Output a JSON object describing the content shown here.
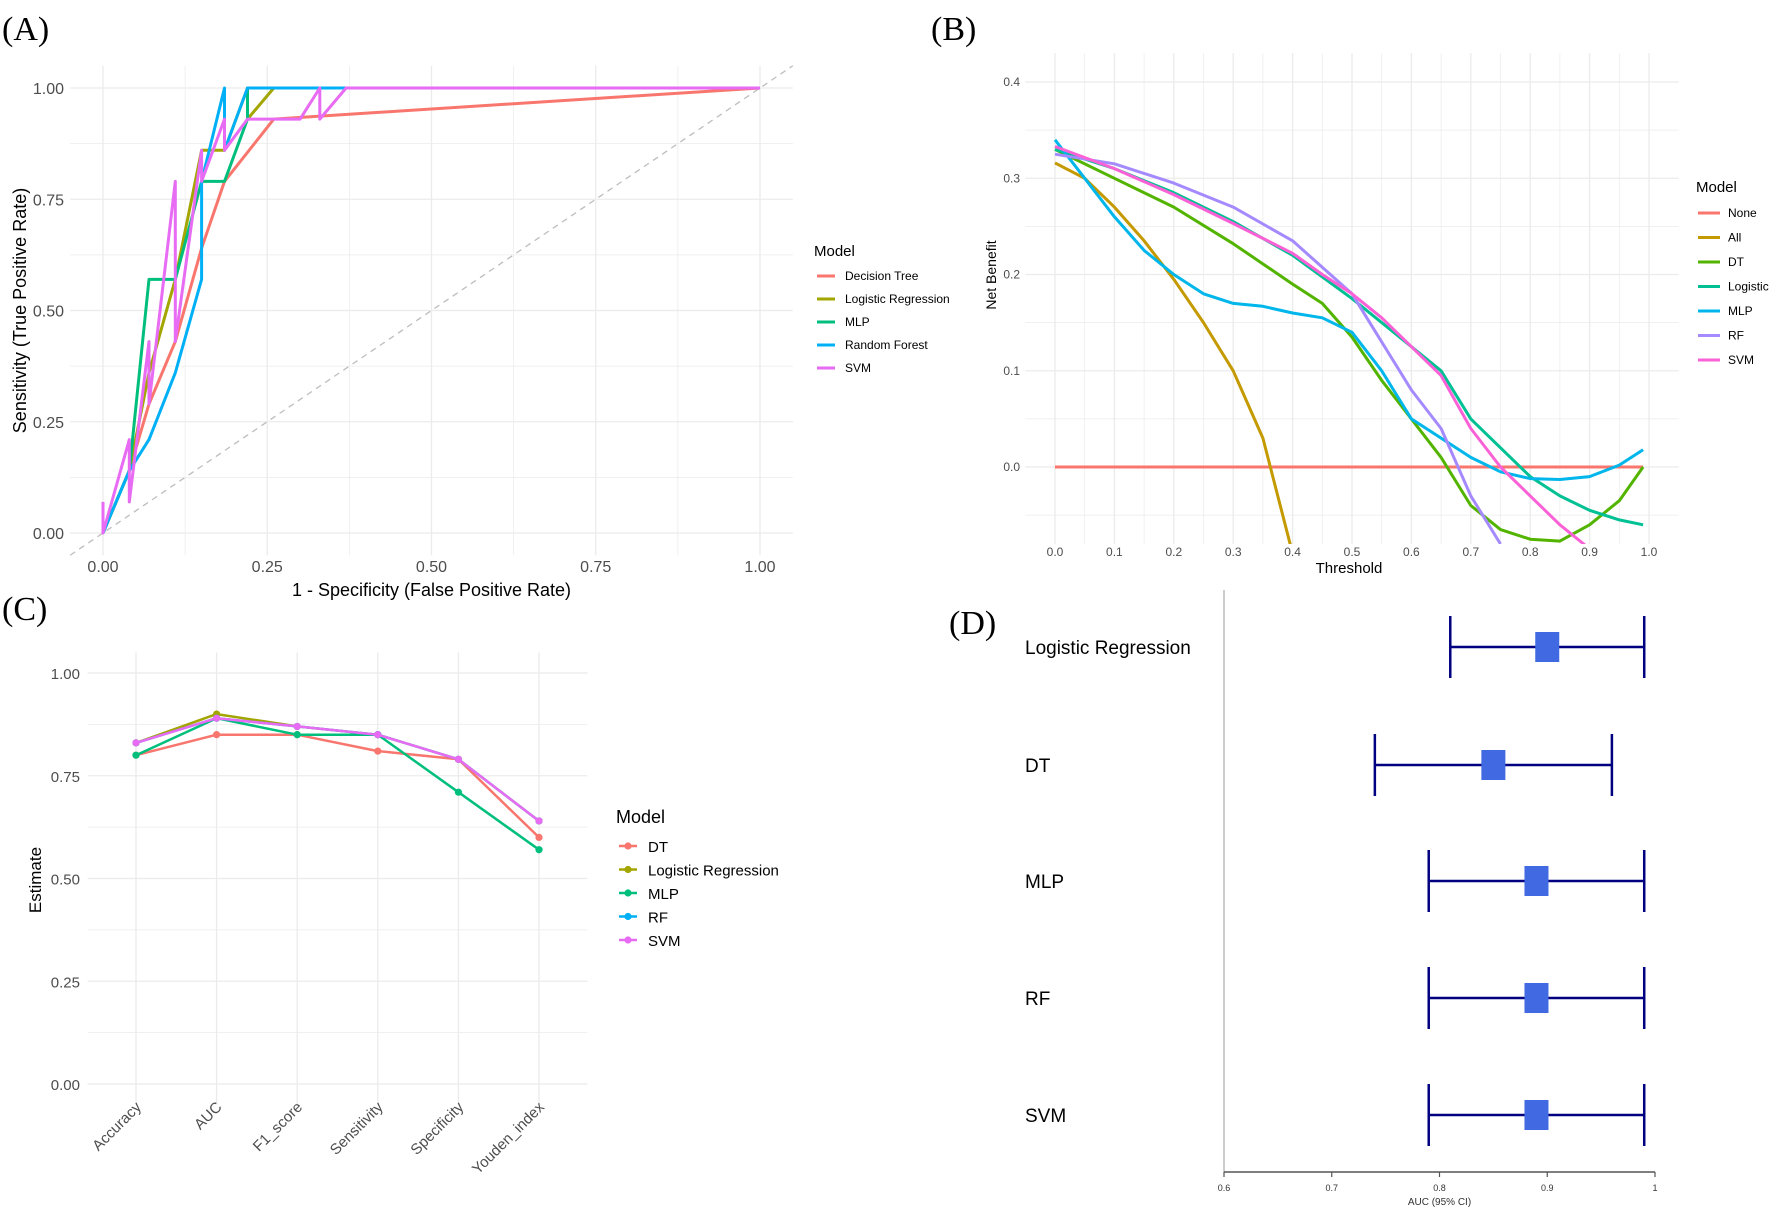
{
  "chart_data": [
    {
      "panel": "(A)",
      "type": "line",
      "xlabel": "1 - Specificity (False Positive Rate)",
      "ylabel": "Sensitivity (True Positive Rate)",
      "xlim": [
        0,
        1
      ],
      "ylim": [
        0,
        1
      ],
      "xticks": [
        "0.00",
        "0.25",
        "0.50",
        "0.75",
        "1.00"
      ],
      "yticks": [
        "0.00",
        "0.25",
        "0.50",
        "0.75",
        "1.00"
      ],
      "grid": true,
      "legend_title": "Model",
      "legend_position": "right",
      "series": [
        {
          "name": "Decision Tree",
          "color": "#F8766D",
          "points": [
            [
              0,
              0
            ],
            [
              0.04,
              0.14
            ],
            [
              0.07,
              0.29
            ],
            [
              0.11,
              0.43
            ],
            [
              0.15,
              0.64
            ],
            [
              0.185,
              0.79
            ],
            [
              0.26,
              0.93
            ],
            [
              1,
              1
            ]
          ]
        },
        {
          "name": "Logistic Regression",
          "color": "#A3A500",
          "points": [
            [
              0,
              0
            ],
            [
              0.04,
              0.14
            ],
            [
              0.07,
              0.36
            ],
            [
              0.11,
              0.57
            ],
            [
              0.15,
              0.86
            ],
            [
              0.185,
              0.86
            ],
            [
              0.22,
              1.0
            ],
            [
              0.22,
              0.93
            ],
            [
              0.26,
              1.0
            ],
            [
              1,
              1
            ]
          ]
        },
        {
          "name": "MLP",
          "color": "#00BF7D",
          "points": [
            [
              0,
              0
            ],
            [
              0.04,
              0.14
            ],
            [
              0.07,
              0.57
            ],
            [
              0.11,
              0.57
            ],
            [
              0.15,
              0.79
            ],
            [
              0.185,
              0.79
            ],
            [
              0.22,
              0.93
            ],
            [
              0.22,
              1.0
            ],
            [
              1,
              1
            ]
          ]
        },
        {
          "name": "Random Forest",
          "color": "#00B0F6",
          "points": [
            [
              0,
              0
            ],
            [
              0.04,
              0.14
            ],
            [
              0.07,
              0.21
            ],
            [
              0.11,
              0.36
            ],
            [
              0.15,
              0.57
            ],
            [
              0.15,
              0.79
            ],
            [
              0.185,
              1.0
            ],
            [
              0.185,
              0.86
            ],
            [
              0.22,
              1.0
            ],
            [
              1,
              1
            ]
          ]
        },
        {
          "name": "SVM",
          "color": "#E76BF3",
          "points": [
            [
              0,
              0.07
            ],
            [
              0,
              0
            ],
            [
              0.04,
              0.21
            ],
            [
              0.04,
              0.07
            ],
            [
              0.07,
              0.43
            ],
            [
              0.07,
              0.29
            ],
            [
              0.11,
              0.79
            ],
            [
              0.11,
              0.43
            ],
            [
              0.15,
              0.86
            ],
            [
              0.15,
              0.79
            ],
            [
              0.185,
              0.93
            ],
            [
              0.185,
              0.86
            ],
            [
              0.22,
              0.93
            ],
            [
              0.3,
              0.93
            ],
            [
              0.33,
              1.0
            ],
            [
              0.33,
              0.93
            ],
            [
              0.37,
              1.0
            ],
            [
              1,
              1
            ]
          ]
        }
      ],
      "reference_line": "diagonal"
    },
    {
      "panel": "(B)",
      "type": "line",
      "xlabel": "Threshold",
      "ylabel": "Net Benefit",
      "xlim": [
        0,
        1
      ],
      "ylim": [
        -0.08,
        0.43
      ],
      "xticks": [
        "0.0",
        "0.1",
        "0.2",
        "0.3",
        "0.4",
        "0.5",
        "0.6",
        "0.7",
        "0.8",
        "0.9",
        "1.0"
      ],
      "yticks": [
        "0.0",
        "0.1",
        "0.2",
        "0.3",
        "0.4"
      ],
      "grid": true,
      "legend_title": "Model",
      "legend_position": "right",
      "series": [
        {
          "name": "None",
          "color": "#F8766D",
          "points": [
            [
              0,
              0
            ],
            [
              0.99,
              0
            ]
          ]
        },
        {
          "name": "All",
          "color": "#C49A00",
          "points": [
            [
              0,
              0.316
            ],
            [
              0.05,
              0.3
            ],
            [
              0.1,
              0.27
            ],
            [
              0.15,
              0.235
            ],
            [
              0.2,
              0.195
            ],
            [
              0.25,
              0.15
            ],
            [
              0.3,
              0.1
            ],
            [
              0.35,
              0.03
            ],
            [
              0.4,
              -0.09
            ]
          ]
        },
        {
          "name": "DT",
          "color": "#53B400",
          "points": [
            [
              0,
              0.33
            ],
            [
              0.1,
              0.3
            ],
            [
              0.2,
              0.27
            ],
            [
              0.3,
              0.232
            ],
            [
              0.4,
              0.19
            ],
            [
              0.45,
              0.17
            ],
            [
              0.5,
              0.135
            ],
            [
              0.55,
              0.09
            ],
            [
              0.6,
              0.05
            ],
            [
              0.65,
              0.01
            ],
            [
              0.7,
              -0.04
            ],
            [
              0.75,
              -0.065
            ],
            [
              0.8,
              -0.075
            ],
            [
              0.85,
              -0.077
            ],
            [
              0.9,
              -0.06
            ],
            [
              0.95,
              -0.035
            ],
            [
              0.99,
              0
            ]
          ]
        },
        {
          "name": "Logistic",
          "color": "#00C094",
          "points": [
            [
              0,
              0.33
            ],
            [
              0.1,
              0.31
            ],
            [
              0.2,
              0.285
            ],
            [
              0.3,
              0.255
            ],
            [
              0.4,
              0.22
            ],
            [
              0.5,
              0.175
            ],
            [
              0.6,
              0.125
            ],
            [
              0.65,
              0.1
            ],
            [
              0.7,
              0.05
            ],
            [
              0.75,
              0.02
            ],
            [
              0.8,
              -0.01
            ],
            [
              0.85,
              -0.03
            ],
            [
              0.9,
              -0.045
            ],
            [
              0.95,
              -0.055
            ],
            [
              0.99,
              -0.06
            ]
          ]
        },
        {
          "name": "MLP",
          "color": "#00B6EB",
          "points": [
            [
              0,
              0.34
            ],
            [
              0.05,
              0.3
            ],
            [
              0.1,
              0.26
            ],
            [
              0.15,
              0.225
            ],
            [
              0.2,
              0.2
            ],
            [
              0.25,
              0.18
            ],
            [
              0.3,
              0.17
            ],
            [
              0.35,
              0.167
            ],
            [
              0.4,
              0.16
            ],
            [
              0.45,
              0.155
            ],
            [
              0.5,
              0.14
            ],
            [
              0.55,
              0.1
            ],
            [
              0.6,
              0.05
            ],
            [
              0.65,
              0.03
            ],
            [
              0.7,
              0.01
            ],
            [
              0.75,
              -0.005
            ],
            [
              0.8,
              -0.012
            ],
            [
              0.85,
              -0.013
            ],
            [
              0.9,
              -0.01
            ],
            [
              0.95,
              0.002
            ],
            [
              0.99,
              0.018
            ]
          ]
        },
        {
          "name": "RF",
          "color": "#A58AFF",
          "points": [
            [
              0,
              0.325
            ],
            [
              0.1,
              0.315
            ],
            [
              0.2,
              0.295
            ],
            [
              0.3,
              0.27
            ],
            [
              0.4,
              0.235
            ],
            [
              0.5,
              0.18
            ],
            [
              0.55,
              0.13
            ],
            [
              0.6,
              0.08
            ],
            [
              0.65,
              0.04
            ],
            [
              0.7,
              -0.03
            ],
            [
              0.75,
              -0.08
            ]
          ]
        },
        {
          "name": "SVM",
          "color": "#FB61D7",
          "points": [
            [
              0,
              0.333
            ],
            [
              0.1,
              0.31
            ],
            [
              0.2,
              0.283
            ],
            [
              0.3,
              0.253
            ],
            [
              0.4,
              0.222
            ],
            [
              0.45,
              0.2
            ],
            [
              0.5,
              0.18
            ],
            [
              0.55,
              0.155
            ],
            [
              0.6,
              0.125
            ],
            [
              0.65,
              0.095
            ],
            [
              0.7,
              0.04
            ],
            [
              0.75,
              0.0
            ],
            [
              0.8,
              -0.03
            ],
            [
              0.85,
              -0.06
            ],
            [
              0.9,
              -0.085
            ]
          ]
        }
      ]
    },
    {
      "panel": "(C)",
      "type": "line",
      "xlabel": "",
      "ylabel": "Estimate",
      "ylim": [
        0,
        1
      ],
      "categories": [
        "Accuracy",
        "AUC",
        "F1_score",
        "Sensitivity",
        "Specificity",
        "Youden_index"
      ],
      "yticks": [
        "0.00",
        "0.25",
        "0.50",
        "0.75",
        "1.00"
      ],
      "grid": true,
      "legend_title": "Model",
      "legend_position": "right",
      "series": [
        {
          "name": "DT",
          "color": "#F8766D",
          "values": [
            0.8,
            0.85,
            0.85,
            0.81,
            0.79,
            0.6
          ]
        },
        {
          "name": "Logistic Regression",
          "color": "#A3A500",
          "values": [
            0.83,
            0.9,
            0.87,
            0.85,
            0.79,
            0.64
          ]
        },
        {
          "name": "MLP",
          "color": "#00BF7D",
          "values": [
            0.8,
            0.89,
            0.85,
            0.85,
            0.71,
            0.57
          ]
        },
        {
          "name": "RF",
          "color": "#00B0F6",
          "values": [
            0.83,
            0.89,
            0.87,
            0.85,
            0.79,
            0.64
          ]
        },
        {
          "name": "SVM",
          "color": "#E76BF3",
          "values": [
            0.83,
            0.89,
            0.87,
            0.85,
            0.79,
            0.64
          ]
        }
      ]
    },
    {
      "panel": "(D)",
      "type": "forest",
      "xlabel": "AUC (95% CI)",
      "xlim": [
        0.6,
        1
      ],
      "xticks": [
        "0.6",
        "0.7",
        "0.8",
        "0.9",
        "1"
      ],
      "marker_color": "#4169E1",
      "ci_color": "#000080",
      "rows": [
        {
          "name": "Logistic Regression",
          "auc": 0.9,
          "lower": 0.81,
          "upper": 0.99
        },
        {
          "name": "DT",
          "auc": 0.85,
          "lower": 0.74,
          "upper": 0.96
        },
        {
          "name": "MLP",
          "auc": 0.89,
          "lower": 0.79,
          "upper": 0.99
        },
        {
          "name": "RF",
          "auc": 0.89,
          "lower": 0.79,
          "upper": 0.99
        },
        {
          "name": "SVM",
          "auc": 0.89,
          "lower": 0.79,
          "upper": 0.99
        }
      ]
    }
  ]
}
